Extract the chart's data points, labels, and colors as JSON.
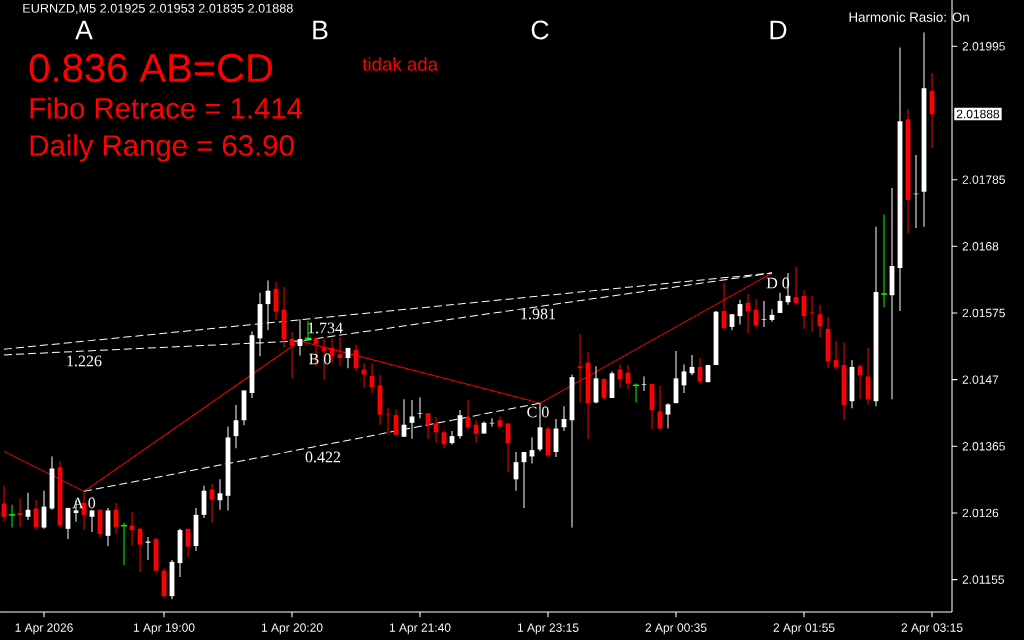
{
  "chart_data": {
    "type": "candlestick",
    "title": "EURNZD,M5 2.01925 2.01953 2.01835 2.01888",
    "categories": [
      null,
      null,
      null,
      null,
      null,
      "1 Apr 2026",
      null,
      null,
      null,
      null,
      null,
      null,
      null,
      null,
      null,
      null,
      null,
      null,
      null,
      null,
      "1 Apr 19:00",
      null,
      null,
      null,
      null,
      null,
      null,
      null,
      null,
      null,
      null,
      null,
      null,
      null,
      null,
      null,
      "1 Apr 20:20",
      null,
      null,
      null,
      null,
      null,
      null,
      null,
      null,
      null,
      null,
      null,
      null,
      null,
      null,
      null,
      "1 Apr 21:40",
      null,
      null,
      null,
      null,
      null,
      null,
      null,
      null,
      null,
      null,
      null,
      null,
      null,
      null,
      null,
      "1 Apr 23:15",
      null,
      null,
      null,
      null,
      null,
      null,
      null,
      null,
      null,
      null,
      null,
      null,
      null,
      null,
      null,
      "2 Apr 00:35",
      null,
      null,
      null,
      null,
      null,
      null,
      null,
      null,
      null,
      null,
      null,
      null,
      null,
      null,
      null,
      "2 Apr 01:55",
      null,
      null,
      null,
      null,
      null,
      null,
      null,
      null,
      null,
      null,
      null,
      null,
      null,
      null,
      null,
      "2 Apr 03:15"
    ],
    "ohlc": [
      [
        2.01275,
        2.01303,
        2.01246,
        2.01254
      ],
      [
        2.01257,
        2.01273,
        2.01237,
        2.01257
      ],
      [
        2.0126,
        2.01283,
        2.01238,
        2.01257
      ],
      [
        2.01254,
        2.01292,
        2.01249,
        2.01265
      ],
      [
        2.01267,
        2.0128,
        2.01233,
        2.01238
      ],
      [
        2.01237,
        2.01295,
        2.01235,
        2.0127
      ],
      [
        2.01267,
        2.01349,
        2.01265,
        2.0133
      ],
      [
        2.01332,
        2.01341,
        2.01238,
        2.01241
      ],
      [
        2.01235,
        2.01268,
        2.01219,
        2.01268
      ],
      [
        2.0126,
        2.0128,
        2.01246,
        2.01264
      ],
      [
        2.01276,
        2.01292,
        2.01233,
        2.01257
      ],
      [
        2.01254,
        2.01264,
        2.0123,
        2.01264
      ],
      [
        2.01265,
        2.01265,
        2.01221,
        2.01227
      ],
      [
        2.01224,
        2.01268,
        2.01208,
        2.01264
      ],
      [
        2.01265,
        2.01276,
        2.01227,
        2.01238
      ],
      [
        2.0124,
        2.01245,
        2.01178,
        2.0124
      ],
      [
        2.0124,
        2.01262,
        2.01208,
        2.01233
      ],
      [
        2.01235,
        2.01237,
        2.01167,
        2.0121
      ],
      [
        2.01213,
        2.01222,
        2.01186,
        2.01215
      ],
      [
        2.01219,
        2.01221,
        2.01169,
        2.01169
      ],
      [
        2.01169,
        2.01173,
        2.01126,
        2.01129
      ],
      [
        2.01129,
        2.01186,
        2.01124,
        2.01183
      ],
      [
        2.01181,
        2.01235,
        2.01159,
        2.01233
      ],
      [
        2.01235,
        2.01235,
        2.01191,
        2.01207
      ],
      [
        2.01208,
        2.01268,
        2.012,
        2.01257
      ],
      [
        2.01257,
        2.01303,
        2.01252,
        2.01295
      ],
      [
        2.01297,
        2.01306,
        2.01245,
        2.01281
      ],
      [
        2.0128,
        2.01313,
        2.01265,
        2.01291
      ],
      [
        2.01287,
        2.01396,
        2.01264,
        2.01379
      ],
      [
        2.01381,
        2.0143,
        2.01362,
        2.01406
      ],
      [
        2.01406,
        2.01453,
        2.01398,
        2.01453
      ],
      [
        2.01449,
        2.01546,
        2.01441,
        2.0154
      ],
      [
        2.01535,
        2.01607,
        2.01507,
        2.01589
      ],
      [
        2.01589,
        2.01626,
        2.01548,
        2.0161
      ],
      [
        2.01613,
        2.01624,
        2.01564,
        2.01577
      ],
      [
        2.0158,
        2.01616,
        2.01521,
        2.01534
      ],
      [
        2.01534,
        2.01545,
        2.01472,
        2.01523
      ],
      [
        2.01523,
        2.01565,
        2.01508,
        2.01534
      ],
      [
        2.01535,
        2.01562,
        2.01531,
        2.01535
      ],
      [
        2.01535,
        2.01535,
        2.01491,
        2.01526
      ],
      [
        2.01521,
        2.01535,
        2.0147,
        2.01515
      ],
      [
        2.0152,
        2.01535,
        2.01496,
        2.01507
      ],
      [
        2.0151,
        2.01537,
        2.01491,
        2.01504
      ],
      [
        2.01504,
        2.0152,
        2.01488,
        2.0152
      ],
      [
        2.01517,
        2.01525,
        2.01483,
        2.01488
      ],
      [
        2.01486,
        2.01496,
        2.01458,
        2.01478
      ],
      [
        2.01476,
        2.01496,
        2.01449,
        2.01458
      ],
      [
        2.01461,
        2.01477,
        2.01399,
        2.01415
      ],
      [
        2.01415,
        2.01425,
        2.01383,
        2.01414
      ],
      [
        2.01414,
        2.01423,
        2.01383,
        2.01383
      ],
      [
        2.0138,
        2.01439,
        2.0138,
        2.01399
      ],
      [
        2.01402,
        2.01438,
        2.01377,
        2.01412
      ],
      [
        2.01416,
        2.01442,
        2.01409,
        2.01417
      ],
      [
        2.01417,
        2.01417,
        2.01377,
        2.01399
      ],
      [
        2.01401,
        2.01411,
        2.01371,
        2.01387
      ],
      [
        2.01387,
        2.0139,
        2.01362,
        2.01368
      ],
      [
        2.0137,
        2.01389,
        2.01368,
        2.01381
      ],
      [
        2.01381,
        2.01422,
        2.01377,
        2.01414
      ],
      [
        2.01411,
        2.01438,
        2.01392,
        2.01395
      ],
      [
        2.01399,
        2.01406,
        2.01371,
        2.01385
      ],
      [
        2.01385,
        2.01404,
        2.01385,
        2.01402
      ],
      [
        2.01401,
        2.01409,
        2.01396,
        2.01402
      ],
      [
        2.01406,
        2.01412,
        2.01395,
        2.01396
      ],
      [
        2.01401,
        2.01401,
        2.01324,
        2.0137
      ],
      [
        2.01313,
        2.01356,
        2.01295,
        2.0134
      ],
      [
        2.0134,
        2.01356,
        2.01268,
        2.01356
      ],
      [
        2.01349,
        2.01379,
        2.01338,
        2.01359
      ],
      [
        2.0136,
        2.01433,
        2.01357,
        2.01395
      ],
      [
        2.01393,
        2.01396,
        2.01348,
        2.01351
      ],
      [
        2.01356,
        2.01408,
        2.01348,
        2.01393
      ],
      [
        2.01395,
        2.01428,
        2.01389,
        2.01408
      ],
      [
        2.01406,
        2.01478,
        2.01237,
        2.01474
      ],
      [
        2.01491,
        2.01542,
        2.01434,
        2.01488
      ],
      [
        2.01497,
        2.01513,
        2.01376,
        2.01433
      ],
      [
        2.01434,
        2.01491,
        2.01433,
        2.01472
      ],
      [
        2.01471,
        2.01472,
        2.01439,
        2.01441
      ],
      [
        2.01441,
        2.01483,
        2.01441,
        2.0148
      ],
      [
        2.01486,
        2.01494,
        2.01458,
        2.01471
      ],
      [
        2.01481,
        2.01493,
        2.01455,
        2.01464
      ],
      [
        2.01461,
        2.01464,
        2.01434,
        2.01461
      ],
      [
        2.01462,
        2.01475,
        2.01452,
        2.01463
      ],
      [
        2.01463,
        2.01463,
        2.01392,
        2.01422
      ],
      [
        2.0142,
        2.0146,
        2.01393,
        2.01393
      ],
      [
        2.01415,
        2.01433,
        2.01393,
        2.01431
      ],
      [
        2.01433,
        2.01515,
        2.01433,
        2.01472
      ],
      [
        2.01461,
        2.01494,
        2.01449,
        2.01483
      ],
      [
        2.0148,
        2.01509,
        2.01477,
        2.0149
      ],
      [
        2.0149,
        2.01504,
        2.01464,
        2.01467
      ],
      [
        2.01466,
        2.01493,
        2.01466,
        2.01493
      ],
      [
        2.01493,
        2.01578,
        2.01493,
        2.01577
      ],
      [
        2.01578,
        2.01623,
        2.01548,
        2.01551
      ],
      [
        2.01553,
        2.01573,
        2.01548,
        2.01573
      ],
      [
        2.0157,
        2.01596,
        2.01557,
        2.01589
      ],
      [
        2.01591,
        2.01605,
        2.01543,
        2.01578
      ],
      [
        2.0158,
        2.01597,
        2.01553,
        2.01556
      ],
      [
        2.01564,
        2.01594,
        2.01553,
        2.01565
      ],
      [
        2.01564,
        2.01581,
        2.01561,
        2.01572
      ],
      [
        2.01575,
        2.01607,
        2.01575,
        2.01594
      ],
      [
        2.01592,
        2.01638,
        2.01588,
        2.01602
      ],
      [
        2.016,
        2.01648,
        2.01588,
        2.01591
      ],
      [
        2.01602,
        2.01611,
        2.0155,
        2.0157
      ],
      [
        2.01576,
        2.01602,
        2.01546,
        2.01575
      ],
      [
        2.01573,
        2.01588,
        2.01537,
        2.01554
      ],
      [
        2.0155,
        2.01569,
        2.01488,
        2.01499
      ],
      [
        2.01501,
        2.01531,
        2.01485,
        2.0149
      ],
      [
        2.01493,
        2.01529,
        2.01406,
        2.0143
      ],
      [
        2.01436,
        2.01501,
        2.01425,
        2.0149
      ],
      [
        2.01491,
        2.01494,
        2.01439,
        2.01477
      ],
      [
        2.01475,
        2.0152,
        2.01431,
        2.01439
      ],
      [
        2.01436,
        2.01711,
        2.01428,
        2.01608
      ],
      [
        2.01605,
        2.0173,
        2.01584,
        2.01605
      ],
      [
        2.01603,
        2.01772,
        2.01439,
        2.01649
      ],
      [
        2.01646,
        2.01993,
        2.01578,
        2.01877
      ],
      [
        2.0188,
        2.01896,
        2.01701,
        2.01753
      ],
      [
        2.01762,
        2.01824,
        2.01709,
        2.01763
      ],
      [
        2.01766,
        2.02017,
        2.01711,
        2.01929
      ],
      [
        2.01925,
        2.01953,
        2.01835,
        2.01888
      ]
    ],
    "colors": [
      "#ff0000",
      "#00ff00",
      "#ff0000",
      "#ffffff",
      "#ff0000",
      "#ffffff",
      "#ffffff",
      "#ff0000",
      "#ffffff",
      "#ffffff",
      "#ff0000",
      "#ffffff",
      "#ff0000",
      "#ffffff",
      "#ff0000",
      "#00ff00",
      "#ff0000",
      "#ff0000",
      "#ffffff",
      "#ff0000",
      "#ff0000",
      "#ffffff",
      "#ffffff",
      "#ff0000",
      "#ffffff",
      "#ffffff",
      "#ff0000",
      "#ffffff",
      "#ffffff",
      "#ffffff",
      "#ffffff",
      "#ffffff",
      "#ffffff",
      "#ffffff",
      "#ff0000",
      "#ff0000",
      "#ff0000",
      "#ffffff",
      "#00ff00",
      "#ff0000",
      "#ff0000",
      "#ff0000",
      "#ff0000",
      "#ffffff",
      "#ff0000",
      "#ff0000",
      "#ff0000",
      "#ff0000",
      "#ff0000",
      "#ff0000",
      "#ffffff",
      "#ffffff",
      "#ffffff",
      "#ff0000",
      "#ff0000",
      "#ff0000",
      "#ffffff",
      "#ffffff",
      "#ff0000",
      "#ff0000",
      "#ffffff",
      "#ffffff",
      "#ff0000",
      "#ff0000",
      "#ffffff",
      "#ffffff",
      "#ffffff",
      "#ffffff",
      "#ff0000",
      "#ffffff",
      "#ffffff",
      "#ffffff",
      "#ff0000",
      "#ff0000",
      "#ffffff",
      "#ff0000",
      "#ffffff",
      "#ff0000",
      "#ff0000",
      "#00ff00",
      "#ffffff",
      "#ff0000",
      "#ff0000",
      "#ffffff",
      "#ffffff",
      "#ffffff",
      "#ffffff",
      "#ff0000",
      "#ffffff",
      "#ffffff",
      "#ff0000",
      "#ffffff",
      "#ffffff",
      "#ff0000",
      "#ff0000",
      "#ffffff",
      "#ffffff",
      "#ffffff",
      "#ffffff",
      "#ff0000",
      "#ff0000",
      "#ff0000",
      "#ff0000",
      "#ff0000",
      "#ff0000",
      "#ff0000",
      "#ffffff",
      "#ff0000",
      "#ff0000",
      "#ffffff",
      "#00ff00",
      "#ffffff",
      "#ffffff",
      "#ff0000",
      "#ffffff",
      "#ffffff",
      "#ff0000"
    ],
    "series": [
      {
        "type": "line",
        "color": "#ff0000",
        "line_style": "solid",
        "values": [
          2.01357,
          null,
          null,
          null,
          null,
          null,
          null,
          null,
          null,
          null,
          2.01294,
          null,
          null,
          null,
          null,
          null,
          null,
          null,
          null,
          null,
          null,
          null,
          null,
          null,
          null,
          null,
          null,
          null,
          null,
          null,
          null,
          null,
          null,
          null,
          null,
          null,
          null,
          2.01531,
          null,
          null,
          null,
          null,
          null,
          null,
          null,
          null,
          null,
          null,
          null,
          null,
          null,
          null,
          null,
          null,
          null,
          null,
          null,
          null,
          null,
          null,
          null,
          null,
          null,
          null,
          null,
          null,
          null,
          2.01433,
          null,
          null,
          null,
          null,
          null,
          null,
          null,
          null,
          null,
          null,
          null,
          null,
          null,
          null,
          null,
          null,
          null,
          null,
          null,
          null,
          null,
          null,
          null,
          null,
          null,
          null,
          null,
          null,
          2.01638,
          null,
          null,
          null,
          null,
          null,
          null,
          null,
          null,
          null,
          null,
          null,
          null,
          null,
          null,
          null,
          null,
          null,
          null,
          null,
          null
        ]
      },
      {
        "type": "line",
        "color": "#ffffff",
        "line_style": "dashed",
        "values": [
          2.01509,
          null,
          null,
          null,
          null,
          null,
          null,
          null,
          null,
          null,
          null,
          null,
          null,
          null,
          null,
          null,
          null,
          null,
          null,
          null,
          null,
          null,
          null,
          null,
          null,
          null,
          null,
          null,
          null,
          null,
          null,
          null,
          null,
          null,
          null,
          null,
          null,
          2.01531,
          null,
          null,
          null,
          null,
          null,
          null,
          null,
          null,
          null,
          null,
          null,
          null,
          null,
          null,
          null,
          null,
          null,
          null,
          null,
          null,
          null,
          null,
          null,
          null,
          null,
          null,
          null,
          null,
          null,
          null,
          null,
          null,
          null,
          null,
          null,
          null,
          null,
          null,
          null,
          null,
          null,
          null,
          null,
          null,
          null,
          null,
          null,
          null,
          null,
          null,
          null,
          null,
          null,
          null,
          null,
          null,
          null,
          null,
          2.01638,
          null,
          null,
          null,
          null,
          null,
          null,
          null,
          null,
          null,
          null,
          null,
          null,
          null,
          null,
          null,
          null,
          null,
          null,
          null,
          null
        ]
      },
      {
        "type": "line",
        "color": "#ffffff",
        "line_style": "dashed",
        "values": [
          2.01518,
          null,
          null,
          null,
          null,
          null,
          null,
          null,
          null,
          null,
          null,
          null,
          null,
          null,
          null,
          null,
          null,
          null,
          null,
          null,
          null,
          null,
          null,
          null,
          null,
          null,
          null,
          null,
          null,
          null,
          null,
          null,
          null,
          null,
          null,
          null,
          null,
          null,
          null,
          null,
          null,
          null,
          null,
          null,
          null,
          null,
          null,
          null,
          null,
          null,
          null,
          null,
          null,
          null,
          null,
          null,
          null,
          null,
          null,
          null,
          null,
          null,
          null,
          null,
          null,
          null,
          null,
          null,
          null,
          null,
          null,
          null,
          null,
          null,
          null,
          null,
          null,
          null,
          null,
          null,
          null,
          null,
          null,
          null,
          null,
          null,
          null,
          null,
          null,
          null,
          null,
          null,
          null,
          null,
          null,
          null,
          2.01638,
          null,
          null,
          null,
          null,
          null,
          null,
          null,
          null,
          null,
          null,
          null,
          null,
          null,
          null,
          null,
          null,
          null,
          null,
          null,
          null
        ]
      },
      {
        "type": "line",
        "color": "#ffffff",
        "line_style": "dashed",
        "values": [
          null,
          null,
          null,
          null,
          null,
          null,
          null,
          null,
          null,
          null,
          2.01294,
          null,
          null,
          null,
          null,
          null,
          null,
          null,
          null,
          null,
          null,
          null,
          null,
          null,
          null,
          null,
          null,
          null,
          null,
          null,
          null,
          null,
          null,
          null,
          null,
          null,
          null,
          null,
          null,
          null,
          null,
          null,
          null,
          null,
          null,
          null,
          null,
          null,
          null,
          null,
          null,
          null,
          null,
          null,
          null,
          null,
          null,
          null,
          null,
          null,
          null,
          null,
          null,
          null,
          null,
          null,
          null,
          2.01433,
          null,
          null,
          null,
          null,
          null,
          null,
          null,
          null,
          null,
          null,
          null,
          null,
          null,
          null,
          null,
          null,
          null,
          null,
          null,
          null,
          null,
          null,
          null,
          null,
          null,
          null,
          null,
          null,
          null,
          null,
          null,
          null,
          null,
          null,
          null,
          null,
          null,
          null,
          null,
          null,
          null,
          null,
          null,
          null,
          null,
          null,
          null,
          null,
          null
        ]
      }
    ],
    "ylim": [
      2.01104,
      2.02068
    ],
    "yticks": [
      2.01155,
      2.0126,
      2.01365,
      2.0147,
      2.01575,
      2.0168,
      2.01785,
      2.01995
    ],
    "annotations": [
      "A",
      "B",
      "C",
      "D",
      "0.836 AB=CD",
      "tidak ada",
      "Fibo Retrace = 1.414",
      "Daily Range = 63.90",
      "Harmonic Rasio: On",
      "A 0",
      "B 0",
      "C 0",
      "D 0",
      "1.226",
      "1.734",
      "1.981",
      "0.422",
      "2.01888"
    ]
  }
}
